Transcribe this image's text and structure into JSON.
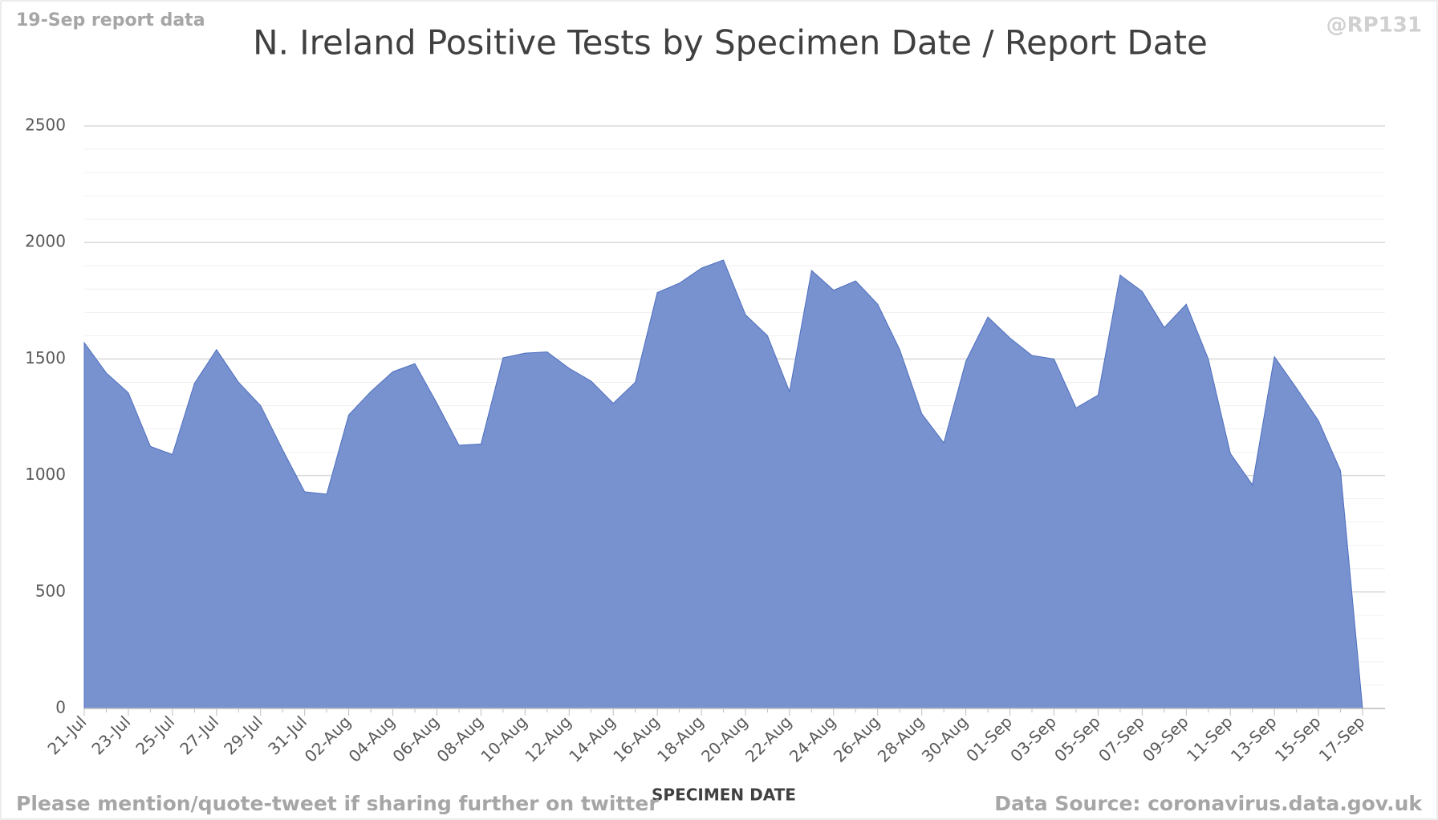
{
  "chart_data": {
    "type": "area",
    "title": "N. Ireland Positive Tests by Specimen Date / Report Date",
    "corner_note": "19-Sep report data",
    "handle": "@RP131",
    "footer_left": "Please mention/quote-tweet if sharing further on twitter",
    "footer_right": "Data Source: coronavirus.data.gov.uk",
    "x_label": "SPECIMEN DATE",
    "categories": [
      "21-Jul",
      null,
      "23-Jul",
      null,
      "25-Jul",
      null,
      "27-Jul",
      null,
      "29-Jul",
      null,
      "31-Jul",
      null,
      "02-Aug",
      null,
      "04-Aug",
      null,
      "06-Aug",
      null,
      "08-Aug",
      null,
      "10-Aug",
      null,
      "12-Aug",
      null,
      "14-Aug",
      null,
      "16-Aug",
      null,
      "18-Aug",
      null,
      "20-Aug",
      null,
      "22-Aug",
      null,
      "24-Aug",
      null,
      "26-Aug",
      null,
      "28-Aug",
      null,
      "30-Aug",
      null,
      "01-Sep",
      null,
      "03-Sep",
      null,
      "05-Sep",
      null,
      "07-Sep",
      null,
      "09-Sep",
      null,
      "11-Sep",
      null,
      "13-Sep",
      null,
      "15-Sep",
      null,
      "17-Sep"
    ],
    "values": [
      1570,
      1440,
      1355,
      1125,
      1090,
      1395,
      1540,
      1400,
      1300,
      1110,
      930,
      920,
      1260,
      1360,
      1445,
      1480,
      1310,
      1130,
      1135,
      1505,
      1525,
      1530,
      1460,
      1405,
      1310,
      1400,
      1785,
      1825,
      1890,
      1925,
      1690,
      1600,
      1360,
      1880,
      1795,
      1835,
      1735,
      1540,
      1265,
      1140,
      1490,
      1680,
      1590,
      1515,
      1500,
      1290,
      1345,
      1860,
      1790,
      1635,
      1735,
      1500,
      1095,
      960,
      1510,
      1375,
      1235,
      1020,
      0
    ],
    "color": "#7891cf",
    "ylim": [
      0,
      2500
    ],
    "yticks": [
      0,
      500,
      1000,
      1500,
      2000,
      2500
    ],
    "minor_yticks": [
      100,
      200,
      300,
      400,
      600,
      700,
      800,
      900,
      1100,
      1200,
      1300,
      1400,
      1600,
      1700,
      1800,
      1900,
      2100,
      2200,
      2300,
      2400
    ],
    "grid": true
  }
}
